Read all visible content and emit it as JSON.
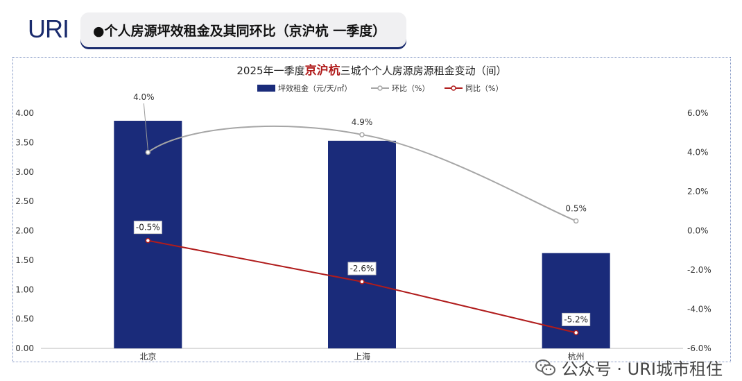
{
  "logo": {
    "text": "URI"
  },
  "header": {
    "title": "●个人房源坪效租金及其同环比（京沪杭 一季度）"
  },
  "watermark": {
    "text": "公众号 · URI城市租住",
    "icon": "wechat-icon"
  },
  "chart_data": {
    "type": "bar",
    "title_parts": [
      "2025年一季度",
      "京沪杭",
      "三城个个人房源房源租金变动（间）"
    ],
    "highlight_color": "#b01c1c",
    "categories": [
      "北京",
      "上海",
      "杭州"
    ],
    "series": [
      {
        "name": "坪效租金（元/天/㎡）",
        "type": "bar",
        "axis": "left",
        "color": "#1a2b7a",
        "values": [
          3.87,
          3.53,
          1.62
        ]
      },
      {
        "name": "环比（%）",
        "type": "line",
        "axis": "right",
        "color": "#a6a6a6",
        "values": [
          4.0,
          4.9,
          0.5
        ],
        "labels": [
          "4.0%",
          "4.9%",
          "0.5%"
        ]
      },
      {
        "name": "同比（%）",
        "type": "line",
        "axis": "right",
        "color": "#b01c1c",
        "values": [
          -0.5,
          -2.6,
          -5.2
        ],
        "labels": [
          "-0.5%",
          "-2.6%",
          "-5.2%"
        ]
      }
    ],
    "y_left": {
      "min": 0,
      "max": 4,
      "step": 0.5,
      "tick_labels": [
        "0.00",
        "0.50",
        "1.00",
        "1.50",
        "2.00",
        "2.50",
        "3.00",
        "3.50",
        "4.00"
      ]
    },
    "y_right": {
      "min": -6,
      "max": 6,
      "step": 2,
      "tick_labels": [
        "-6.0%",
        "-4.0%",
        "-2.0%",
        "0.0%",
        "2.0%",
        "4.0%",
        "6.0%"
      ]
    },
    "legend_position": "top",
    "grid": false
  }
}
